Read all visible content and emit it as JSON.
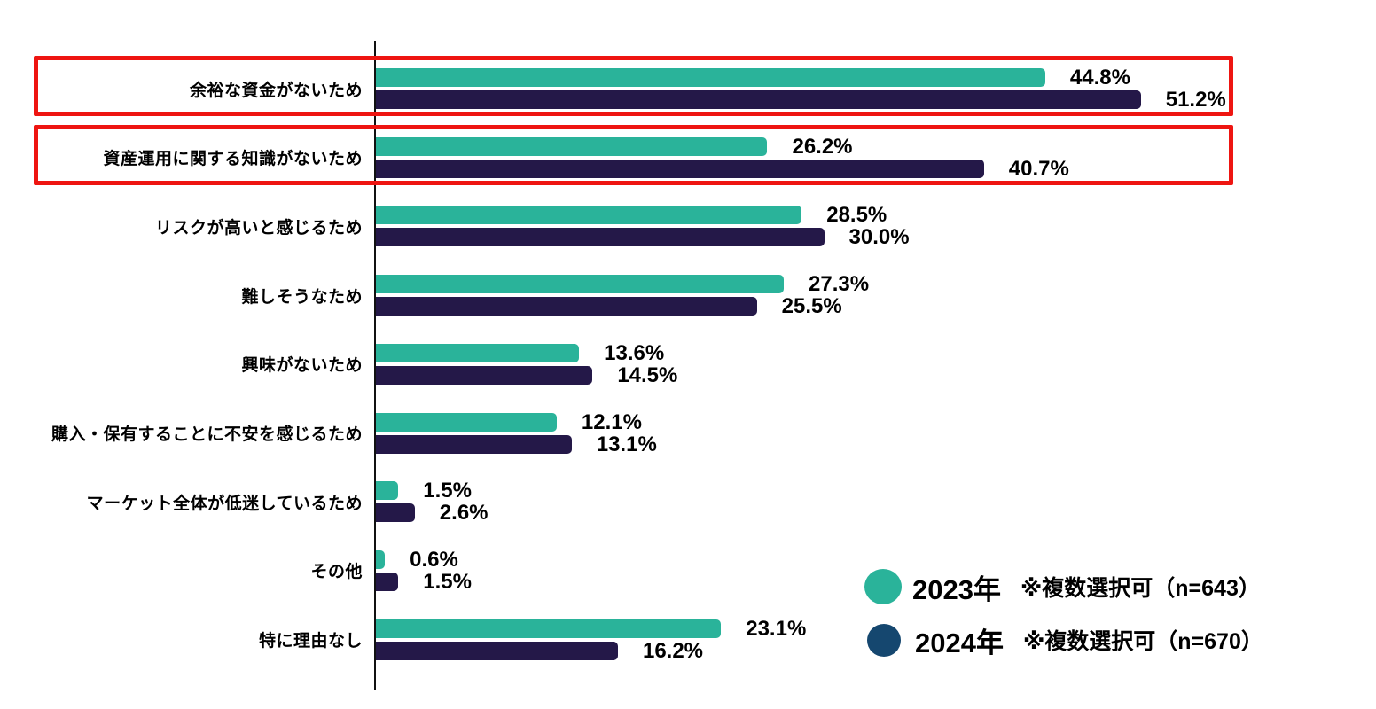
{
  "chart_data": {
    "type": "bar",
    "orientation": "horizontal",
    "title": "",
    "xlabel": "",
    "ylabel": "",
    "xlim": [
      0,
      65
    ],
    "grid": false,
    "legend_position": "bottom-right",
    "value_suffix": "%",
    "highlight_color": "#ee1511",
    "axis_color": "#111111",
    "categories": [
      {
        "label": "余裕な資金がないため",
        "highlighted": true
      },
      {
        "label": "資産運用に関する知識がないため",
        "highlighted": true
      },
      {
        "label": "リスクが高いと感じるため",
        "highlighted": false
      },
      {
        "label": "難しそうなため",
        "highlighted": false
      },
      {
        "label": "興味がないため",
        "highlighted": false
      },
      {
        "label": "購入・保有することに不安を感じるため",
        "highlighted": false
      },
      {
        "label": "マーケット全体が低迷しているため",
        "highlighted": false
      },
      {
        "label": "その他",
        "highlighted": false
      },
      {
        "label": "特に理由なし",
        "highlighted": false
      }
    ],
    "series": [
      {
        "name": "2023年",
        "note": "※複数選択可（n=643）",
        "color": "#2ab39a",
        "legend_color": "#2ab39a",
        "values": [
          44.8,
          26.2,
          28.5,
          27.3,
          13.6,
          12.1,
          1.5,
          0.6,
          23.1
        ]
      },
      {
        "name": "2024年",
        "note": "※複数選択可（n=670）",
        "color": "#241848",
        "legend_color": "#15476f",
        "values": [
          51.2,
          40.7,
          30.0,
          25.5,
          14.5,
          13.1,
          2.6,
          1.5,
          16.2
        ]
      }
    ]
  }
}
